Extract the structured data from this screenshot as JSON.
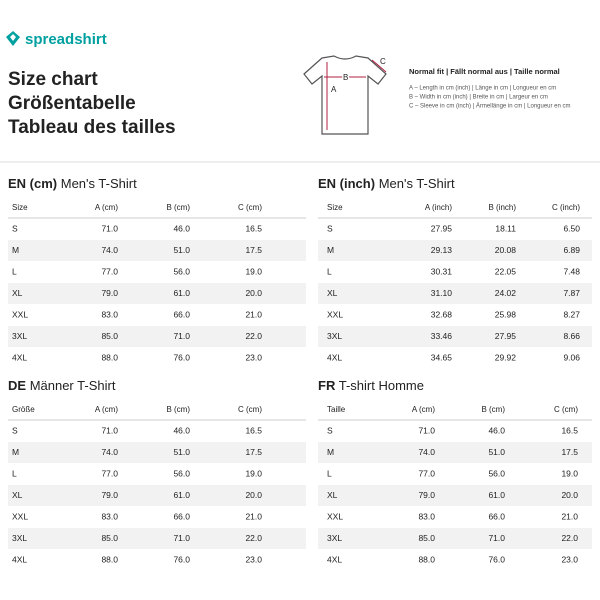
{
  "logo": "spreadshirt",
  "title": [
    "Size chart",
    "Größentabelle",
    "Tableau des tailles"
  ],
  "diagram": {
    "labels": [
      "A",
      "B",
      "C"
    ],
    "fit": "Normal fit | Fällt normal aus | Taille normal",
    "legend": [
      "A – Length in cm (inch) | Länge in cm | Longueur en cm",
      "B – Width in cm (inch) | Breite in cm | Largeur en cm",
      "C – Sleeve in cm (inch) | Ärmellänge in cm | Longueur en cm"
    ]
  },
  "tables": [
    {
      "code": "EN (cm)",
      "name": "Men's T-Shirt",
      "columns": [
        "Size",
        "A (cm)",
        "B (cm)",
        "C (cm)"
      ],
      "rows": [
        [
          "S",
          "71.0",
          "46.0",
          "16.5"
        ],
        [
          "M",
          "74.0",
          "51.0",
          "17.5"
        ],
        [
          "L",
          "77.0",
          "56.0",
          "19.0"
        ],
        [
          "XL",
          "79.0",
          "61.0",
          "20.0"
        ],
        [
          "XXL",
          "83.0",
          "66.0",
          "21.0"
        ],
        [
          "3XL",
          "85.0",
          "71.0",
          "22.0"
        ],
        [
          "4XL",
          "88.0",
          "76.0",
          "23.0"
        ]
      ]
    },
    {
      "code": "EN (inch)",
      "name": "Men's T-Shirt",
      "columns": [
        "Size",
        "A (inch)",
        "B (inch)",
        "C (inch)"
      ],
      "rows": [
        [
          "S",
          "27.95",
          "18.11",
          "6.50"
        ],
        [
          "M",
          "29.13",
          "20.08",
          "6.89"
        ],
        [
          "L",
          "30.31",
          "22.05",
          "7.48"
        ],
        [
          "XL",
          "31.10",
          "24.02",
          "7.87"
        ],
        [
          "XXL",
          "32.68",
          "25.98",
          "8.27"
        ],
        [
          "3XL",
          "33.46",
          "27.95",
          "8.66"
        ],
        [
          "4XL",
          "34.65",
          "29.92",
          "9.06"
        ]
      ]
    },
    {
      "code": "DE",
      "name": "Männer T-Shirt",
      "columns": [
        "Größe",
        "A (cm)",
        "B (cm)",
        "C (cm)"
      ],
      "rows": [
        [
          "S",
          "71.0",
          "46.0",
          "16.5"
        ],
        [
          "M",
          "74.0",
          "51.0",
          "17.5"
        ],
        [
          "L",
          "77.0",
          "56.0",
          "19.0"
        ],
        [
          "XL",
          "79.0",
          "61.0",
          "20.0"
        ],
        [
          "XXL",
          "83.0",
          "66.0",
          "21.0"
        ],
        [
          "3XL",
          "85.0",
          "71.0",
          "22.0"
        ],
        [
          "4XL",
          "88.0",
          "76.0",
          "23.0"
        ]
      ]
    },
    {
      "code": "FR",
      "name": "T-shirt Homme",
      "columns": [
        "Taille",
        "A (cm)",
        "B (cm)",
        "C (cm)"
      ],
      "rows": [
        [
          "S",
          "71.0",
          "46.0",
          "16.5"
        ],
        [
          "M",
          "74.0",
          "51.0",
          "17.5"
        ],
        [
          "L",
          "77.0",
          "56.0",
          "19.0"
        ],
        [
          "XL",
          "79.0",
          "61.0",
          "20.0"
        ],
        [
          "XXL",
          "83.0",
          "66.0",
          "21.0"
        ],
        [
          "3XL",
          "85.0",
          "71.0",
          "22.0"
        ],
        [
          "4XL",
          "88.0",
          "76.0",
          "23.0"
        ]
      ]
    }
  ]
}
